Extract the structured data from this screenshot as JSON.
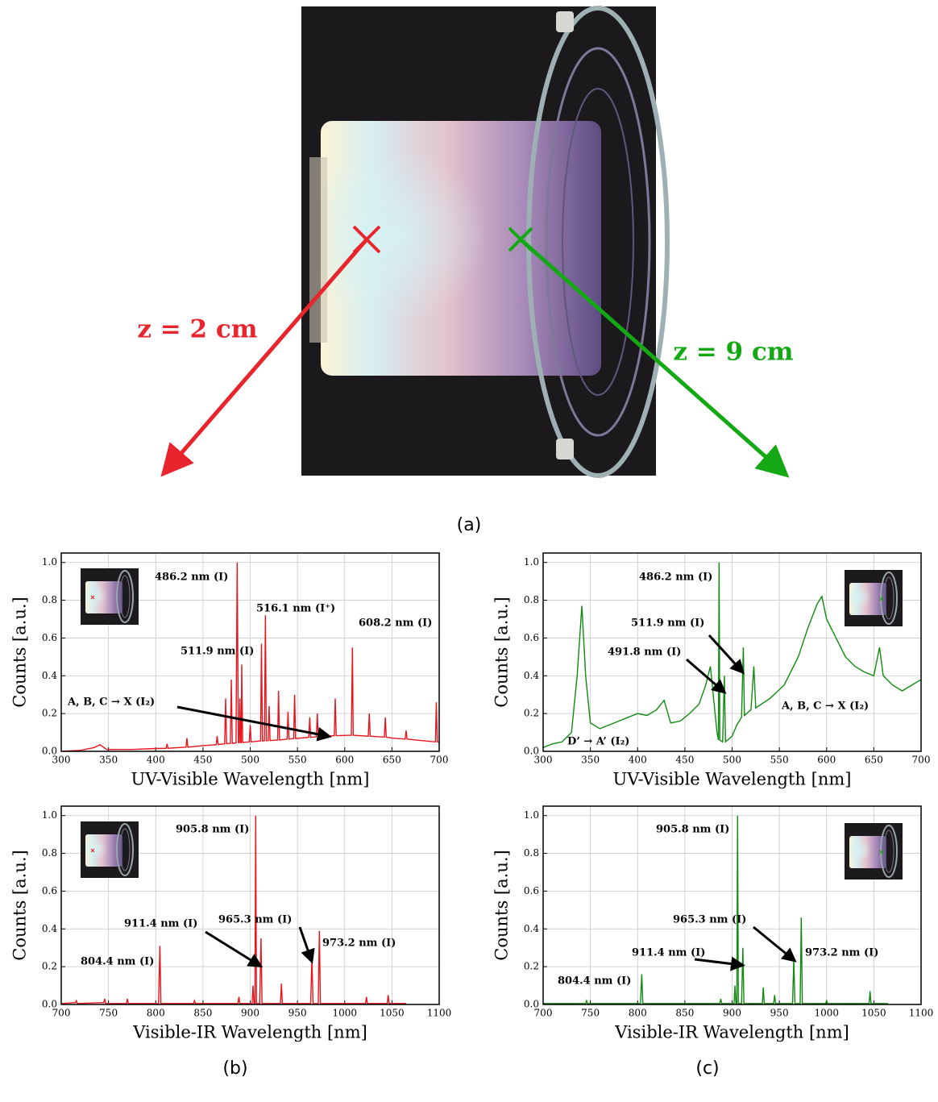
{
  "figure": {
    "panel_labels": [
      "(a)",
      "(b)",
      "(c)"
    ],
    "left_label": "z = 2 cm",
    "right_label": "z = 9 cm"
  },
  "chart_data": [
    {
      "type": "line",
      "xlabel": "UV-Visible Wavelength [nm]",
      "ylabel": "Counts [a.u.]",
      "color": "#e8141c",
      "xlim": [
        300,
        700
      ],
      "xticks": [
        300,
        350,
        400,
        450,
        500,
        550,
        600,
        650,
        700
      ],
      "ylim": [
        0,
        1.05
      ],
      "yticks": [
        {
          "value": 0,
          "label": "0.0"
        },
        0.2,
        0.4,
        0.6,
        0.8,
        {
          "value": 1,
          "label": "1.0"
        }
      ],
      "grid": true,
      "annotations": [
        "486.2 nm (I)",
        "516.1 nm (I⁺)",
        "511.9 nm (I)",
        "608.2 nm (I)",
        "A, B, C → X (I₂)"
      ],
      "x": [
        300,
        320,
        335,
        341,
        348,
        375,
        400,
        411,
        412,
        413,
        425,
        432,
        433,
        434,
        450,
        464,
        465,
        466,
        473,
        474,
        475,
        479,
        480,
        481,
        485,
        486.2,
        487.5,
        488.5,
        489,
        490,
        490.5,
        491,
        492,
        499,
        500,
        501,
        511,
        511.9,
        513,
        515,
        516.1,
        517,
        519,
        520,
        521,
        529,
        530,
        531,
        539,
        540,
        541,
        546,
        547,
        548,
        562,
        563,
        564,
        570,
        571,
        572,
        589,
        590,
        591,
        607,
        608.2,
        609,
        625,
        626,
        627,
        642,
        643,
        644,
        650,
        664,
        665,
        666,
        675,
        696,
        697,
        698,
        700
      ],
      "values": [
        0,
        0.005,
        0.02,
        0.035,
        0.01,
        0.01,
        0.015,
        0.016,
        0.04,
        0.016,
        0.02,
        0.022,
        0.07,
        0.022,
        0.03,
        0.035,
        0.08,
        0.036,
        0.04,
        0.28,
        0.04,
        0.042,
        0.38,
        0.042,
        0.045,
        1.0,
        0.046,
        0.046,
        0.28,
        0.046,
        0.046,
        0.46,
        0.047,
        0.05,
        0.14,
        0.05,
        0.055,
        0.57,
        0.055,
        0.056,
        0.72,
        0.056,
        0.057,
        0.24,
        0.057,
        0.06,
        0.32,
        0.06,
        0.065,
        0.21,
        0.065,
        0.068,
        0.3,
        0.068,
        0.074,
        0.18,
        0.074,
        0.077,
        0.2,
        0.077,
        0.083,
        0.28,
        0.083,
        0.085,
        0.55,
        0.085,
        0.08,
        0.2,
        0.08,
        0.075,
        0.18,
        0.075,
        0.07,
        0.065,
        0.11,
        0.065,
        0.06,
        0.05,
        0.26,
        0.05,
        0.05
      ]
    },
    {
      "type": "line",
      "xlabel": "UV-Visible Wavelength [nm]",
      "ylabel": "Counts [a.u.]",
      "color": "#128a12",
      "xlim": [
        300,
        700
      ],
      "xticks": [
        300,
        350,
        400,
        450,
        500,
        550,
        600,
        650,
        700
      ],
      "ylim": [
        0,
        1.05
      ],
      "yticks": [
        {
          "value": 0,
          "label": "0.0"
        },
        0.2,
        0.4,
        0.6,
        0.8,
        {
          "value": 1,
          "label": "1.0"
        }
      ],
      "grid": true,
      "annotations": [
        "486.2 nm (I)",
        "511.9 nm (I)",
        "491.8 nm (I)",
        "A, B, C → X (I₂)",
        "D’ → A’ (I₂)"
      ],
      "x": [
        300,
        310,
        320,
        330,
        336,
        341,
        345,
        350,
        360,
        375,
        390,
        400,
        410,
        420,
        428,
        435,
        445,
        455,
        465,
        472,
        477,
        480,
        484,
        485.5,
        486.2,
        487,
        490,
        491.8,
        493,
        500,
        505,
        510,
        511.9,
        513,
        520,
        523,
        525,
        540,
        555,
        570,
        580,
        590,
        595,
        600,
        610,
        620,
        630,
        640,
        650,
        656,
        660,
        670,
        680,
        690,
        700
      ],
      "values": [
        0.02,
        0.04,
        0.05,
        0.1,
        0.4,
        0.77,
        0.4,
        0.15,
        0.12,
        0.15,
        0.18,
        0.2,
        0.19,
        0.22,
        0.27,
        0.15,
        0.16,
        0.2,
        0.25,
        0.35,
        0.45,
        0.3,
        0.1,
        0.06,
        1.0,
        0.06,
        0.05,
        0.4,
        0.05,
        0.08,
        0.14,
        0.18,
        0.55,
        0.19,
        0.22,
        0.45,
        0.23,
        0.28,
        0.35,
        0.5,
        0.65,
        0.78,
        0.82,
        0.7,
        0.6,
        0.5,
        0.45,
        0.42,
        0.4,
        0.55,
        0.4,
        0.35,
        0.32,
        0.35,
        0.38
      ]
    },
    {
      "type": "line",
      "xlabel": "Visible-IR Wavelength [nm]",
      "ylabel": "Counts [a.u.]",
      "color": "#e8141c",
      "xlim": [
        700,
        1100
      ],
      "xticks": [
        700,
        750,
        800,
        850,
        900,
        950,
        1000,
        1050,
        1100
      ],
      "ylim": [
        0,
        1.05
      ],
      "yticks": [
        {
          "value": 0,
          "label": "0.0"
        },
        0.2,
        0.4,
        0.6,
        0.8,
        {
          "value": 1,
          "label": "1.0"
        }
      ],
      "grid": true,
      "annotations": [
        "905.8 nm (I)",
        "911.4 nm (I)",
        "965.3 nm (I)",
        "973.2 nm (I)",
        "804.4 nm (I)"
      ],
      "x": [
        700,
        715,
        716,
        717,
        745,
        746,
        747,
        769,
        770,
        771,
        803,
        804.4,
        805.5,
        840,
        841,
        842,
        887,
        888,
        889,
        902,
        903,
        904,
        905,
        905.8,
        906.6,
        910,
        911.4,
        912.5,
        932,
        933,
        934,
        964,
        965.3,
        966.5,
        972,
        973.2,
        974.3,
        1022,
        1023,
        1024,
        1045,
        1046,
        1047,
        1065
      ],
      "values": [
        0.005,
        0.01,
        0.02,
        0.005,
        0.01,
        0.03,
        0.005,
        0.005,
        0.03,
        0.005,
        0.005,
        0.31,
        0.005,
        0.005,
        0.02,
        0.005,
        0.005,
        0.04,
        0.005,
        0.005,
        0.1,
        0.005,
        0.005,
        1.0,
        0.005,
        0.005,
        0.35,
        0.005,
        0.005,
        0.11,
        0.005,
        0.005,
        0.25,
        0.005,
        0.005,
        0.39,
        0.005,
        0.005,
        0.04,
        0.005,
        0.005,
        0.05,
        0.005,
        0.005
      ]
    },
    {
      "type": "line",
      "xlabel": "Visible-IR Wavelength [nm]",
      "ylabel": "Counts [a.u.]",
      "color": "#128a12",
      "xlim": [
        700,
        1100
      ],
      "xticks": [
        700,
        750,
        800,
        850,
        900,
        950,
        1000,
        1050,
        1100
      ],
      "ylim": [
        0,
        1.05
      ],
      "yticks": [
        {
          "value": 0,
          "label": "0.0"
        },
        0.2,
        0.4,
        0.6,
        0.8,
        {
          "value": 1,
          "label": "1.0"
        }
      ],
      "grid": true,
      "annotations": [
        "905.8 nm (I)",
        "965.3 nm (I)",
        "911.4 nm (I)",
        "973.2 nm (I)",
        "804.4 nm (I)"
      ],
      "x": [
        700,
        745,
        746,
        747,
        803,
        804.4,
        805.5,
        887,
        888,
        889,
        902,
        903,
        904,
        905,
        905.8,
        906.6,
        910,
        911.4,
        912.5,
        932,
        933,
        934,
        944,
        945,
        946,
        964,
        965.3,
        966.5,
        972,
        973.2,
        974.3,
        999,
        1000,
        1001,
        1045,
        1046,
        1047,
        1065
      ],
      "values": [
        0.005,
        0.005,
        0.02,
        0.005,
        0.005,
        0.16,
        0.005,
        0.005,
        0.03,
        0.005,
        0.005,
        0.1,
        0.005,
        0.005,
        1.0,
        0.005,
        0.005,
        0.3,
        0.005,
        0.005,
        0.09,
        0.005,
        0.005,
        0.05,
        0.005,
        0.005,
        0.24,
        0.005,
        0.005,
        0.46,
        0.005,
        0.005,
        0.02,
        0.005,
        0.005,
        0.07,
        0.005,
        0.005
      ]
    }
  ]
}
